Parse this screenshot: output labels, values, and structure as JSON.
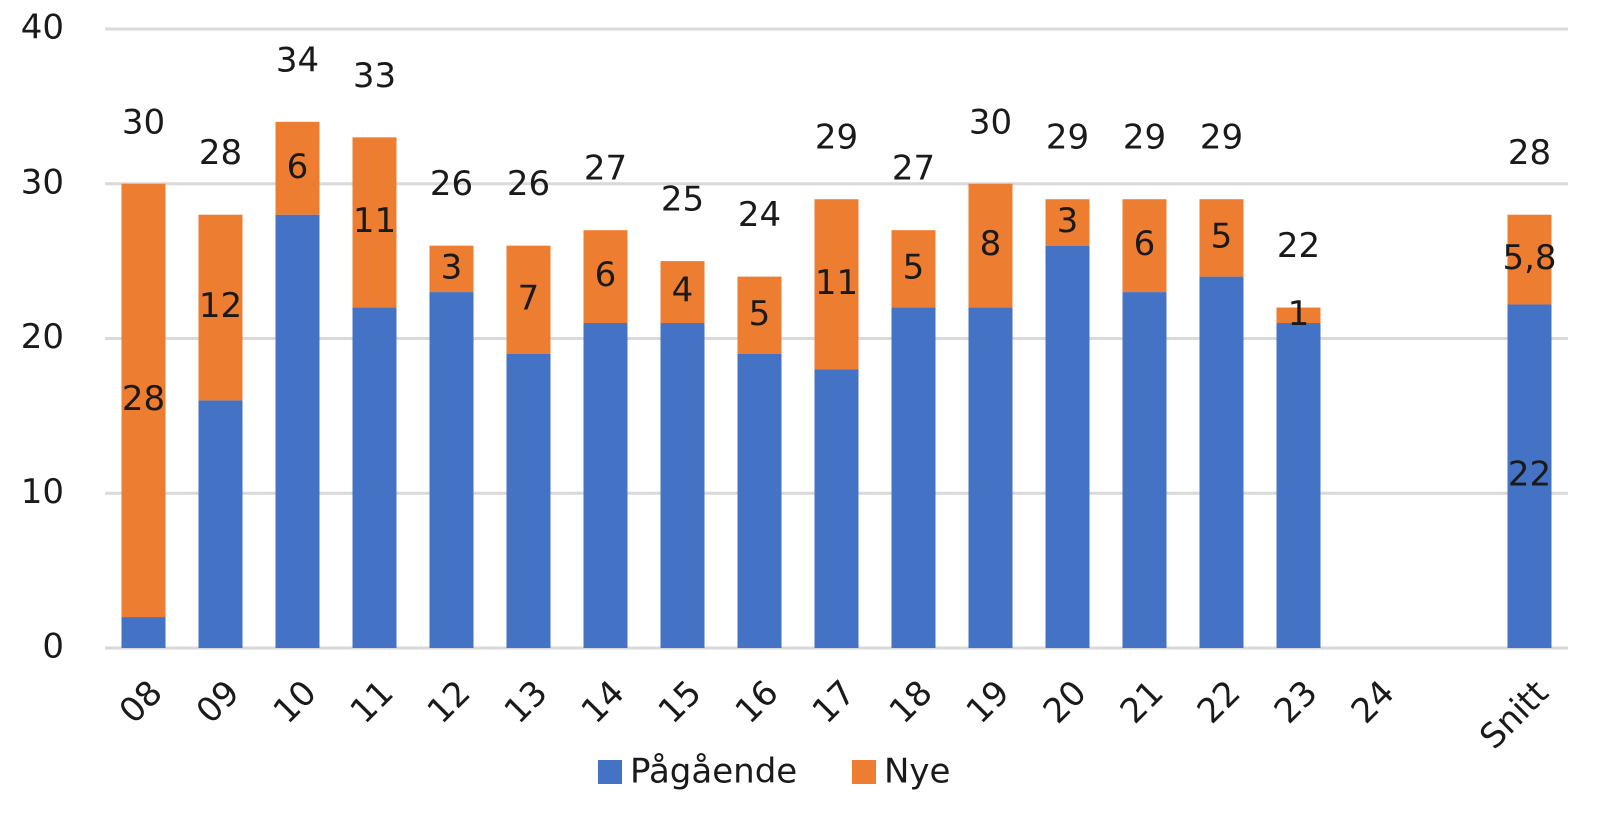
{
  "chart_data": {
    "type": "stacked_bar",
    "categories": [
      "08",
      "09",
      "10",
      "11",
      "12",
      "13",
      "14",
      "15",
      "16",
      "17",
      "18",
      "19",
      "20",
      "21",
      "22",
      "23",
      "24",
      null,
      "Snitt"
    ],
    "series": [
      {
        "name": "Pågående",
        "color": "#4472c4",
        "values": [
          2,
          16,
          28,
          22,
          23,
          19,
          21,
          21,
          19,
          18,
          22,
          22,
          26,
          23,
          24,
          21,
          null,
          null,
          22.2
        ],
        "value_labels": [
          null,
          null,
          null,
          null,
          null,
          null,
          null,
          null,
          null,
          null,
          null,
          null,
          null,
          null,
          null,
          null,
          null,
          null,
          "22"
        ]
      },
      {
        "name": "Nye",
        "color": "#ed7d31",
        "values": [
          28,
          12,
          6,
          11,
          3,
          7,
          6,
          4,
          5,
          11,
          5,
          8,
          3,
          6,
          5,
          1,
          null,
          null,
          5.8
        ],
        "value_labels": [
          "28",
          "12",
          "6",
          "11",
          "3",
          "7",
          "6",
          "4",
          "5",
          "11",
          "5",
          "8",
          "3",
          "6",
          "5",
          "1",
          null,
          null,
          "5,8"
        ]
      }
    ],
    "totals": [
      30,
      28,
      34,
      33,
      26,
      26,
      27,
      25,
      24,
      29,
      27,
      30,
      29,
      29,
      29,
      22,
      null,
      null,
      28
    ],
    "ylim": [
      0,
      40
    ],
    "yticks": [
      0,
      10,
      20,
      30,
      40
    ],
    "grid": true,
    "legend": "bottom"
  }
}
